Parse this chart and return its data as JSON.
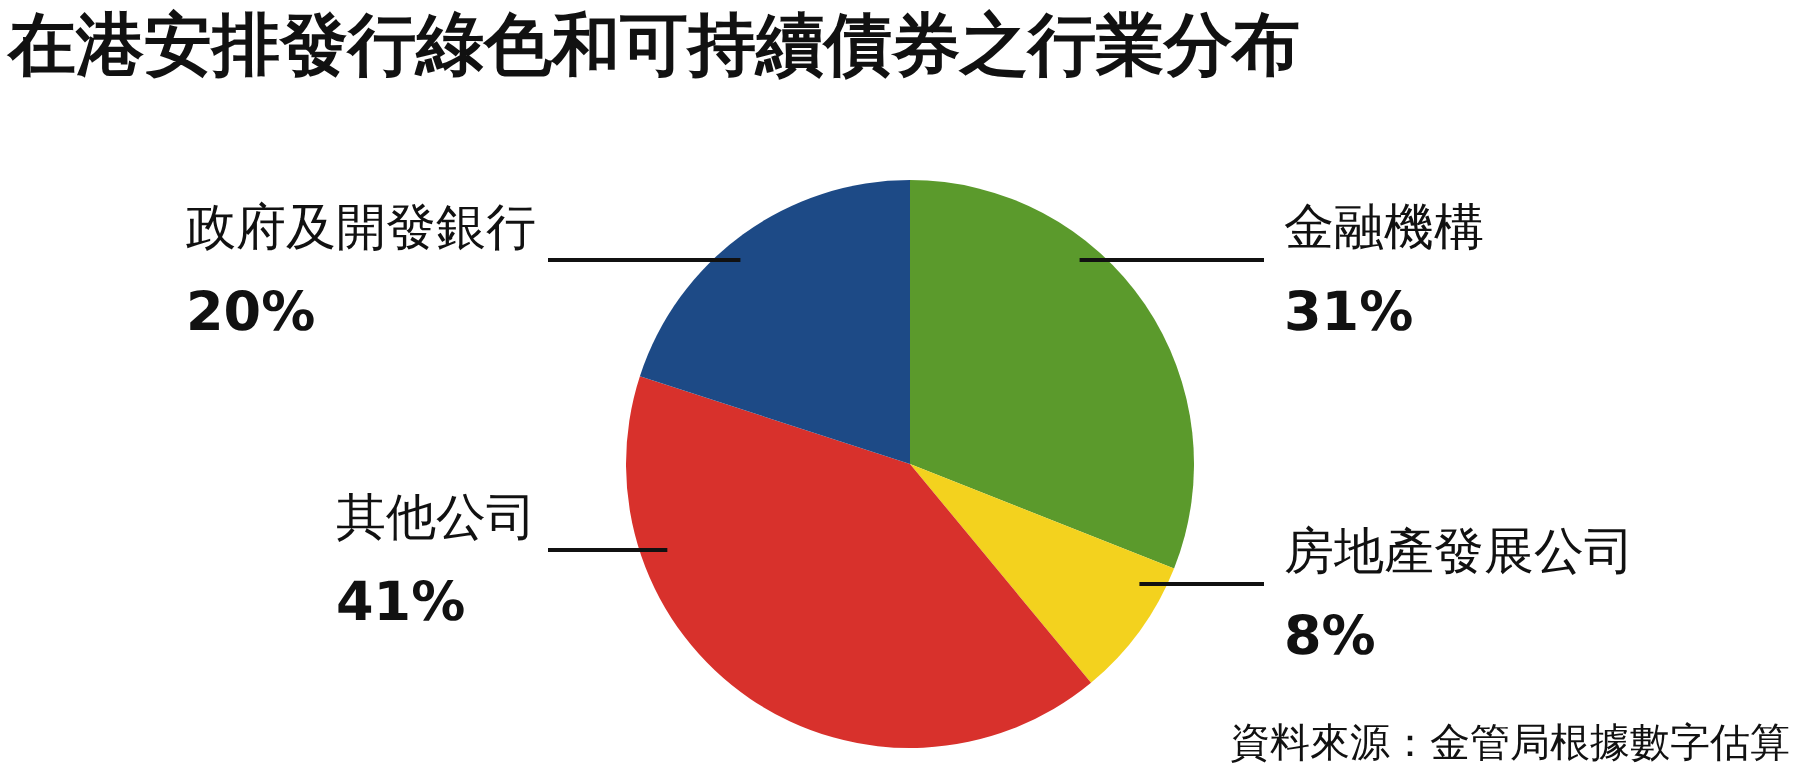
{
  "chart_data": {
    "type": "pie",
    "title": "在港安排發行綠色和可持續債券之行業分布",
    "categories": [
      "金融機構",
      "房地產發展公司",
      "其他公司",
      "政府及開發銀行"
    ],
    "values": [
      31,
      8,
      41,
      20
    ],
    "value_labels": [
      "31%",
      "8%",
      "41%",
      "20%"
    ],
    "colors": [
      "#5b9a2c",
      "#f3d21e",
      "#d8312c",
      "#1d4a86"
    ],
    "annotations": [
      "資料來源：金管局根據數字估算"
    ]
  }
}
